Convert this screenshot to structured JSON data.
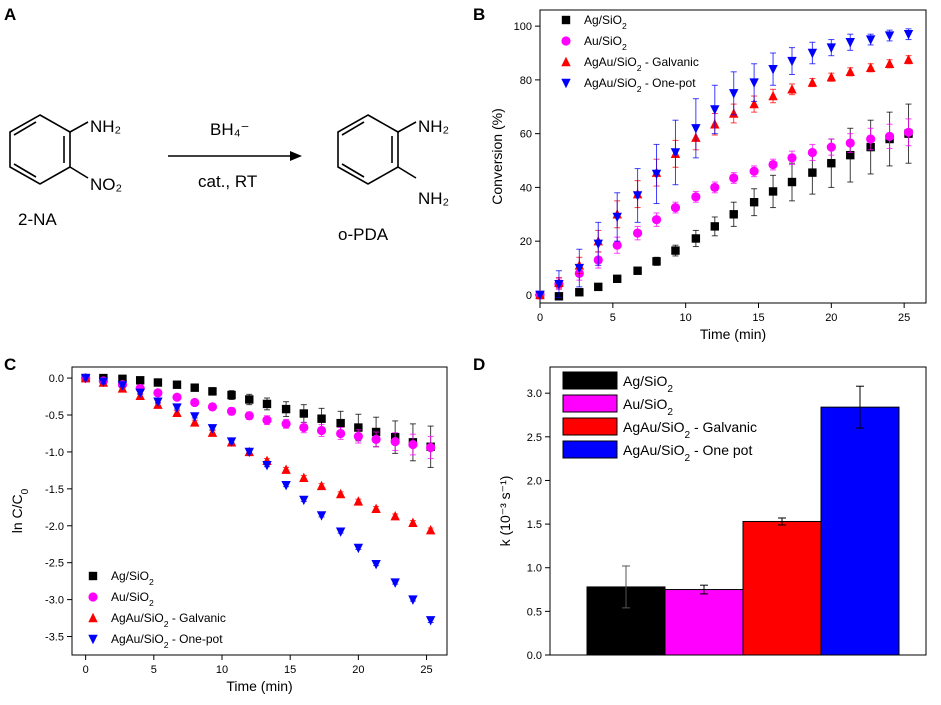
{
  "panels": [
    {
      "letter": "A"
    },
    {
      "letter": "B"
    },
    {
      "letter": "C"
    },
    {
      "letter": "D"
    }
  ],
  "scheme": {
    "reactant_label": "2-NA",
    "reactant_sub1": "NH₂",
    "reactant_sub2": "NO₂",
    "product_label": "o-PDA",
    "product_sub1": "NH₂",
    "product_sub2": "NH₂",
    "reagent_above": "BH₄⁻",
    "reagent_below": "cat., RT"
  },
  "legend_names": [
    "Ag/SiO₂",
    "Au/SiO₂",
    "AgAu/SiO₂ - Galvanic",
    "AgAu/SiO₂ - One-pot"
  ],
  "chart_data": [
    {
      "panel": "B",
      "type": "scatter",
      "xlabel": "Time (min)",
      "ylabel": "Conversion (%)",
      "xlim": [
        0,
        26.5
      ],
      "ylim": [
        -3,
        106
      ],
      "xticks": [
        0,
        5,
        10,
        15,
        20,
        25
      ],
      "yticks": [
        0,
        20,
        40,
        60,
        80,
        100
      ],
      "legend_position": "top-left",
      "series": [
        {
          "name": "Ag/SiO₂",
          "marker": "square",
          "color": "#000000",
          "x": [
            0,
            1.3,
            2.7,
            4,
            5.3,
            6.7,
            8,
            9.3,
            10.7,
            12,
            13.3,
            14.7,
            16,
            17.3,
            18.7,
            20,
            21.3,
            22.7,
            24,
            25.3
          ],
          "y": [
            0,
            -0.5,
            1,
            3,
            6,
            9,
            12.5,
            16.5,
            21,
            25.5,
            30,
            34.5,
            38.5,
            42,
            45.5,
            49,
            52,
            55,
            58,
            60
          ],
          "err": [
            0,
            0.5,
            0.5,
            0.5,
            1,
            1,
            1.5,
            2,
            3,
            3.5,
            4.5,
            5,
            6,
            7,
            8,
            9,
            10,
            10,
            10,
            11
          ]
        },
        {
          "name": "Au/SiO₂",
          "marker": "circle",
          "color": "#ff00ff",
          "x": [
            0,
            1.3,
            2.7,
            4,
            5.3,
            6.7,
            8,
            9.3,
            10.7,
            12,
            13.3,
            14.7,
            16,
            17.3,
            18.7,
            20,
            21.3,
            22.7,
            24,
            25.3
          ],
          "y": [
            0,
            4,
            8,
            13,
            18.5,
            23,
            28,
            32.5,
            36.5,
            40,
            43.5,
            46,
            48.5,
            51,
            53,
            55,
            56.5,
            58,
            59,
            60.5
          ],
          "err": [
            0,
            2,
            2.5,
            3,
            3,
            2.5,
            2.5,
            2,
            2,
            2,
            2,
            2,
            2,
            2.5,
            3,
            3,
            3.5,
            4,
            4.5,
            5
          ]
        },
        {
          "name": "AgAu/SiO₂ - Galvanic",
          "marker": "triangle-up",
          "color": "#ff0000",
          "x": [
            0,
            1.3,
            2.7,
            4,
            5.3,
            6.7,
            8,
            9.3,
            10.7,
            12,
            13.3,
            14.7,
            16,
            17.3,
            18.7,
            20,
            21.3,
            22.7,
            24,
            25.3
          ],
          "y": [
            0,
            4.5,
            11,
            20,
            30,
            37.5,
            45.5,
            52.5,
            58.5,
            63.5,
            67.5,
            71,
            74,
            76.5,
            79,
            81,
            83,
            84.5,
            86,
            87.5
          ],
          "err": [
            0,
            2,
            3,
            4,
            5,
            5,
            5,
            5,
            4.5,
            4,
            3.5,
            3,
            2.5,
            2,
            1.5,
            1.5,
            1.5,
            1.5,
            1.5,
            1.5
          ]
        },
        {
          "name": "AgAu/SiO₂ - One-pot",
          "marker": "triangle-down",
          "color": "#0000ff",
          "x": [
            0,
            1.3,
            2.7,
            4,
            5.3,
            6.7,
            8,
            9.3,
            10.7,
            12,
            13.3,
            14.7,
            16,
            17.3,
            18.7,
            20,
            21.3,
            22.7,
            24,
            25.3
          ],
          "y": [
            0,
            4,
            10,
            19,
            29,
            37,
            45,
            53,
            62,
            69,
            75,
            79,
            84,
            87,
            90,
            92,
            94,
            95,
            96.5,
            97
          ],
          "err": [
            0,
            5,
            7,
            8,
            9,
            10,
            11,
            12,
            11,
            9,
            8,
            7,
            6,
            5,
            4,
            3,
            3,
            2,
            2,
            2
          ]
        }
      ]
    },
    {
      "panel": "C",
      "type": "scatter",
      "xlabel": "Time (min)",
      "ylabel": "ln C/C₀",
      "xlim": [
        -1,
        26.5
      ],
      "ylim": [
        -3.75,
        0.15
      ],
      "xticks": [
        0,
        5,
        10,
        15,
        20,
        25
      ],
      "yticks": [
        0.0,
        -0.5,
        -1.0,
        -1.5,
        -2.0,
        -2.5,
        -3.0,
        -3.5
      ],
      "legend_position": "bottom-left",
      "series": [
        {
          "name": "Ag/SiO₂",
          "marker": "square",
          "color": "#000000",
          "x": [
            0,
            1.3,
            2.7,
            4,
            5.3,
            6.7,
            8,
            9.3,
            10.7,
            12,
            13.3,
            14.7,
            16,
            17.3,
            18.7,
            20,
            21.3,
            22.7,
            24,
            25.3
          ],
          "y": [
            0,
            0,
            -0.01,
            -0.03,
            -0.06,
            -0.09,
            -0.13,
            -0.18,
            -0.23,
            -0.29,
            -0.35,
            -0.42,
            -0.48,
            -0.55,
            -0.61,
            -0.67,
            -0.73,
            -0.8,
            -0.87,
            -0.93
          ],
          "err": [
            0,
            0.01,
            0.02,
            0.02,
            0.03,
            0.03,
            0.04,
            0.05,
            0.06,
            0.07,
            0.08,
            0.1,
            0.12,
            0.14,
            0.16,
            0.18,
            0.2,
            0.22,
            0.25,
            0.28
          ]
        },
        {
          "name": "Au/SiO₂",
          "marker": "circle",
          "color": "#ff00ff",
          "x": [
            0,
            1.3,
            2.7,
            4,
            5.3,
            6.7,
            8,
            9.3,
            10.7,
            12,
            13.3,
            14.7,
            16,
            17.3,
            18.7,
            20,
            21.3,
            22.7,
            24,
            25.3
          ],
          "y": [
            0,
            -0.04,
            -0.09,
            -0.14,
            -0.2,
            -0.26,
            -0.33,
            -0.39,
            -0.45,
            -0.51,
            -0.57,
            -0.62,
            -0.67,
            -0.71,
            -0.75,
            -0.79,
            -0.83,
            -0.86,
            -0.9,
            -0.94
          ],
          "err": [
            0,
            0.02,
            0.02,
            0.03,
            0.03,
            0.03,
            0.04,
            0.04,
            0.05,
            0.05,
            0.06,
            0.06,
            0.07,
            0.08,
            0.08,
            0.09,
            0.1,
            0.12,
            0.14,
            0.15
          ]
        },
        {
          "name": "AgAu/SiO₂ - Galvanic",
          "marker": "triangle-up",
          "color": "#ff0000",
          "x": [
            0,
            1.3,
            2.7,
            4,
            5.3,
            6.7,
            8,
            9.3,
            10.7,
            12,
            13.3,
            14.7,
            16,
            17.3,
            18.7,
            20,
            21.3,
            22.7,
            24,
            25.3
          ],
          "y": [
            0,
            -0.06,
            -0.14,
            -0.24,
            -0.36,
            -0.47,
            -0.6,
            -0.74,
            -0.87,
            -1.0,
            -1.12,
            -1.24,
            -1.35,
            -1.46,
            -1.57,
            -1.67,
            -1.77,
            -1.87,
            -1.96,
            -2.06
          ],
          "err": [
            0,
            0.02,
            0.02,
            0.03,
            0.03,
            0.03,
            0.03,
            0.03,
            0.03,
            0.03,
            0.03,
            0.03,
            0.03,
            0.03,
            0.03,
            0.03,
            0.03,
            0.03,
            0.03,
            0.03
          ]
        },
        {
          "name": "AgAu/SiO₂ - One-pot",
          "marker": "triangle-down",
          "color": "#0000ff",
          "x": [
            0,
            1.3,
            2.7,
            4,
            5.3,
            6.7,
            8,
            9.3,
            10.7,
            12,
            13.3,
            14.7,
            16,
            17.3,
            18.7,
            20,
            21.3,
            22.7,
            24,
            25.3
          ],
          "y": [
            0,
            -0.05,
            -0.1,
            -0.2,
            -0.32,
            -0.4,
            -0.52,
            -0.68,
            -0.86,
            -1.0,
            -1.18,
            -1.45,
            -1.65,
            -1.86,
            -2.08,
            -2.3,
            -2.52,
            -2.77,
            -3.0,
            -3.28
          ],
          "err": [
            0,
            0.02,
            0.02,
            0.02,
            0.02,
            0.02,
            0.02,
            0.02,
            0.02,
            0.02,
            0.02,
            0.02,
            0.02,
            0.02,
            0.02,
            0.02,
            0.02,
            0.02,
            0.02,
            0.03
          ]
        }
      ]
    },
    {
      "panel": "D",
      "type": "bar",
      "xlabel": "",
      "ylabel": "k (10⁻³ s⁻¹)",
      "ylim": [
        0,
        3.3
      ],
      "yticks": [
        0.0,
        0.5,
        1.0,
        1.5,
        2.0,
        2.5,
        3.0
      ],
      "legend_position": "top-left",
      "categories": [
        "Ag/SiO₂",
        "Au/SiO₂",
        "AgAu/SiO₂ - Galvanic",
        "AgAu/SiO₂ - One pot"
      ],
      "values": [
        0.78,
        0.75,
        1.53,
        2.84
      ],
      "errors": [
        0.24,
        0.05,
        0.04,
        0.24
      ],
      "colors": [
        "#000000",
        "#ff00ff",
        "#ff0000",
        "#0000ff"
      ]
    }
  ]
}
